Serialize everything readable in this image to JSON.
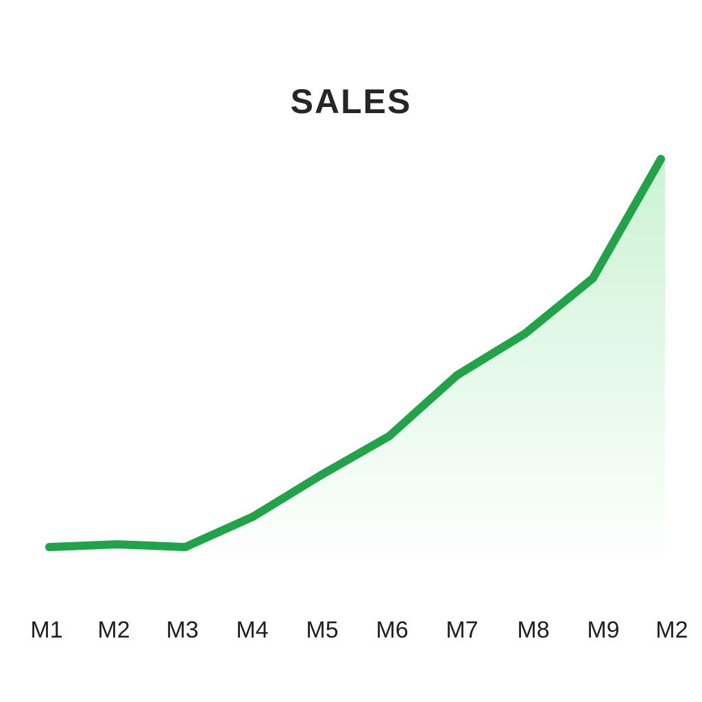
{
  "chart_data": {
    "type": "area",
    "title": "SALES",
    "xlabel": "",
    "ylabel": "",
    "categories": [
      "M1",
      "M2",
      "M3",
      "M4",
      "M5",
      "M6",
      "M7",
      "M8",
      "M9",
      "M2"
    ],
    "series": [
      {
        "values": [
          1.0,
          1.1,
          1.0,
          2.1,
          3.6,
          5.0,
          7.2,
          8.7,
          10.7,
          15.0
        ]
      }
    ],
    "ylim": [
      0,
      16
    ],
    "grid": false,
    "legend": "none",
    "colors": {
      "line": "#22a34a",
      "fill_top": "#c9f2d2",
      "fill_bottom": "#ffffff"
    }
  }
}
